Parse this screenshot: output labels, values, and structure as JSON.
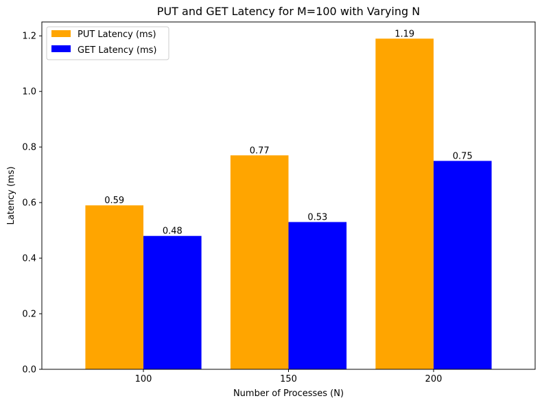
{
  "chart_data": {
    "type": "bar",
    "title": "PUT and GET Latency for M=100 with Varying N",
    "xlabel": "Number of Processes (N)",
    "ylabel": "Latency (ms)",
    "categories": [
      "100",
      "150",
      "200"
    ],
    "ylim": [
      0,
      1.25
    ],
    "yticks": [
      0.0,
      0.2,
      0.4,
      0.6,
      0.8,
      1.0,
      1.2
    ],
    "ytick_labels": [
      "0.0",
      "0.2",
      "0.4",
      "0.6",
      "0.8",
      "1.0",
      "1.2"
    ],
    "grid": false,
    "legend_position": "upper-left",
    "series": [
      {
        "name": "PUT Latency (ms)",
        "color": "#FFA500",
        "values": [
          0.59,
          0.77,
          1.19
        ],
        "value_labels": [
          "0.59",
          "0.77",
          "1.19"
        ]
      },
      {
        "name": "GET Latency (ms)",
        "color": "#0000FF",
        "values": [
          0.48,
          0.53,
          0.75
        ],
        "value_labels": [
          "0.48",
          "0.53",
          "0.75"
        ]
      }
    ]
  }
}
